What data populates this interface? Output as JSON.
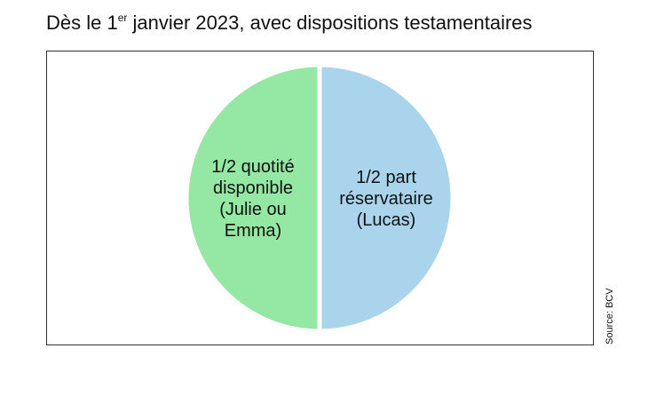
{
  "chart_data": {
    "type": "pie",
    "title": [
      "Dès le 1",
      "er",
      " janvier 2023, avec dispositions testamentaires"
    ],
    "categories": [
      [
        "1/2 quotité",
        "disponible",
        "(Julie ou",
        "Emma)"
      ],
      [
        "1/2 part",
        "réservataire",
        "(Lucas)"
      ]
    ],
    "values": [
      0.5,
      0.5
    ],
    "colors": [
      "#95e8a3",
      "#aad4ec"
    ],
    "source": "Source: BCV"
  }
}
